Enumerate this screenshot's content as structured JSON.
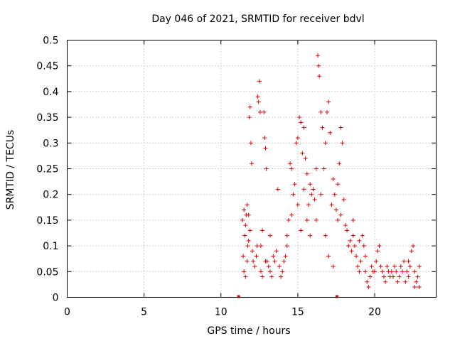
{
  "chart_data": {
    "type": "scatter",
    "title": "Day 046 of 2021, SRMTID for receiver bdvl",
    "xlabel": "GPS time / hours",
    "ylabel": "SRMTID / TECUs",
    "xlim": [
      0,
      24
    ],
    "ylim": [
      0,
      0.5
    ],
    "xticks": [
      0,
      5,
      10,
      15,
      20
    ],
    "yticks": [
      0,
      0.05,
      0.1,
      0.15,
      0.2,
      0.25,
      0.3,
      0.35,
      0.4,
      0.45,
      0.5
    ],
    "ytick_labels": [
      "0",
      "0.05",
      "0.1",
      "0.15",
      "0.2",
      "0.25",
      "0.3",
      "0.35",
      "0.4",
      "0.45",
      "0.5"
    ],
    "grid": true,
    "marker": "+",
    "color": "#e00000",
    "series": [
      {
        "name": "SRMTID",
        "points": [
          [
            11.4,
            0.15
          ],
          [
            11.5,
            0.17
          ],
          [
            11.6,
            0.14
          ],
          [
            11.7,
            0.18
          ],
          [
            11.8,
            0.16
          ],
          [
            11.9,
            0.13
          ],
          [
            11.95,
            0.3
          ],
          [
            11.9,
            0.37
          ],
          [
            11.85,
            0.35
          ],
          [
            12.0,
            0.26
          ],
          [
            12.05,
            0.09
          ],
          [
            11.5,
            0.05
          ],
          [
            11.6,
            0.04
          ],
          [
            11.7,
            0.07
          ],
          [
            11.8,
            0.11
          ],
          [
            11.55,
            0.12
          ],
          [
            11.65,
            0.16
          ],
          [
            11.75,
            0.1
          ],
          [
            11.45,
            0.08
          ],
          [
            12.1,
            0.07
          ],
          [
            12.2,
            0.06
          ],
          [
            12.3,
            0.08
          ],
          [
            12.35,
            0.1
          ],
          [
            12.4,
            0.39
          ],
          [
            12.45,
            0.38
          ],
          [
            12.5,
            0.42
          ],
          [
            12.55,
            0.36
          ],
          [
            12.6,
            0.05
          ],
          [
            12.7,
            0.04
          ],
          [
            12.8,
            0.36
          ],
          [
            12.85,
            0.31
          ],
          [
            12.9,
            0.29
          ],
          [
            12.95,
            0.25
          ],
          [
            13.0,
            0.07
          ],
          [
            13.1,
            0.06
          ],
          [
            13.2,
            0.05
          ],
          [
            13.3,
            0.04
          ],
          [
            13.4,
            0.08
          ],
          [
            13.5,
            0.07
          ],
          [
            13.6,
            0.09
          ],
          [
            13.7,
            0.21
          ],
          [
            13.8,
            0.06
          ],
          [
            13.9,
            0.04
          ],
          [
            12.6,
            0.1
          ],
          [
            12.7,
            0.13
          ],
          [
            12.9,
            0.07
          ],
          [
            13.2,
            0.12
          ],
          [
            14.0,
            0.05
          ],
          [
            14.1,
            0.07
          ],
          [
            14.2,
            0.08
          ],
          [
            14.3,
            0.12
          ],
          [
            14.4,
            0.15
          ],
          [
            14.5,
            0.26
          ],
          [
            14.6,
            0.25
          ],
          [
            14.7,
            0.2
          ],
          [
            14.8,
            0.22
          ],
          [
            14.9,
            0.3
          ],
          [
            15.0,
            0.31
          ],
          [
            15.1,
            0.35
          ],
          [
            15.2,
            0.34
          ],
          [
            15.3,
            0.28
          ],
          [
            15.4,
            0.33
          ],
          [
            15.5,
            0.27
          ],
          [
            15.6,
            0.24
          ],
          [
            15.7,
            0.18
          ],
          [
            15.8,
            0.22
          ],
          [
            15.9,
            0.2
          ],
          [
            14.3,
            0.1
          ],
          [
            14.6,
            0.16
          ],
          [
            15.0,
            0.18
          ],
          [
            15.2,
            0.13
          ],
          [
            15.4,
            0.21
          ],
          [
            15.6,
            0.15
          ],
          [
            15.8,
            0.12
          ],
          [
            16.0,
            0.21
          ],
          [
            16.1,
            0.19
          ],
          [
            16.2,
            0.25
          ],
          [
            16.3,
            0.47
          ],
          [
            16.35,
            0.45
          ],
          [
            16.4,
            0.43
          ],
          [
            16.5,
            0.36
          ],
          [
            16.6,
            0.33
          ],
          [
            16.7,
            0.25
          ],
          [
            16.8,
            0.3
          ],
          [
            16.9,
            0.36
          ],
          [
            17.0,
            0.38
          ],
          [
            17.1,
            0.32
          ],
          [
            17.2,
            0.18
          ],
          [
            17.3,
            0.06
          ],
          [
            17.4,
            0.2
          ],
          [
            17.5,
            0.17
          ],
          [
            17.6,
            0.15
          ],
          [
            17.7,
            0.26
          ],
          [
            17.8,
            0.33
          ],
          [
            17.9,
            0.3
          ],
          [
            18.0,
            0.19
          ],
          [
            16.2,
            0.15
          ],
          [
            16.5,
            0.2
          ],
          [
            16.8,
            0.12
          ],
          [
            17.0,
            0.08
          ],
          [
            17.3,
            0.23
          ],
          [
            17.6,
            0.22
          ],
          [
            17.8,
            0.16
          ],
          [
            18.1,
            0.14
          ],
          [
            18.2,
            0.13
          ],
          [
            18.3,
            0.1
          ],
          [
            18.4,
            0.11
          ],
          [
            18.5,
            0.09
          ],
          [
            18.6,
            0.12
          ],
          [
            18.7,
            0.1
          ],
          [
            18.8,
            0.08
          ],
          [
            18.9,
            0.06
          ],
          [
            19.0,
            0.05
          ],
          [
            19.1,
            0.07
          ],
          [
            19.2,
            0.12
          ],
          [
            19.3,
            0.1
          ],
          [
            19.4,
            0.05
          ],
          [
            19.5,
            0.03
          ],
          [
            19.6,
            0.02
          ],
          [
            19.7,
            0.04
          ],
          [
            19.8,
            0.06
          ],
          [
            19.9,
            0.05
          ],
          [
            18.6,
            0.15
          ],
          [
            19.0,
            0.11
          ],
          [
            19.4,
            0.08
          ],
          [
            20.0,
            0.05
          ],
          [
            20.1,
            0.07
          ],
          [
            20.2,
            0.09
          ],
          [
            20.3,
            0.1
          ],
          [
            20.4,
            0.06
          ],
          [
            20.5,
            0.05
          ],
          [
            20.6,
            0.04
          ],
          [
            20.7,
            0.03
          ],
          [
            20.8,
            0.06
          ],
          [
            20.9,
            0.05
          ],
          [
            21.0,
            0.04
          ],
          [
            21.1,
            0.05
          ],
          [
            21.2,
            0.04
          ],
          [
            21.3,
            0.06
          ],
          [
            21.4,
            0.05
          ],
          [
            21.5,
            0.03
          ],
          [
            21.6,
            0.04
          ],
          [
            21.7,
            0.06
          ],
          [
            21.8,
            0.05
          ],
          [
            21.9,
            0.07
          ],
          [
            22.0,
            0.03
          ],
          [
            22.1,
            0.05
          ],
          [
            22.2,
            0.04
          ],
          [
            22.3,
            0.06
          ],
          [
            22.4,
            0.09
          ],
          [
            22.5,
            0.1
          ],
          [
            22.6,
            0.05
          ],
          [
            22.7,
            0.03
          ],
          [
            22.8,
            0.04
          ],
          [
            22.9,
            0.06
          ],
          [
            22.2,
            0.07
          ],
          [
            22.6,
            0.02
          ],
          [
            22.9,
            0.02
          ]
        ]
      }
    ],
    "axis_markers_x": [
      11.15,
      17.55
    ]
  }
}
